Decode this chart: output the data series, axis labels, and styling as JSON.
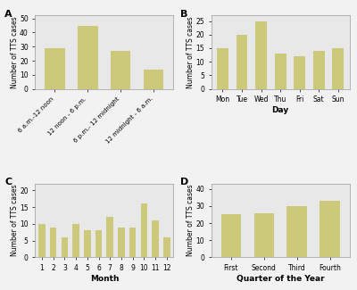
{
  "panel_A": {
    "categories": [
      "6 a.m.-12 noon",
      "12 noon - 6 p.m.",
      "6 p.m.- 12 midnight",
      "12 midnight - 6 a.m."
    ],
    "values": [
      29,
      45,
      27,
      14
    ],
    "ylabel": "Number of TTS cases",
    "label": "A",
    "ylim": [
      0,
      52
    ],
    "yticks": [
      0,
      10,
      20,
      30,
      40,
      50
    ]
  },
  "panel_B": {
    "categories": [
      "Mon",
      "Tue",
      "Wed",
      "Thu",
      "Fri",
      "Sat",
      "Sun"
    ],
    "values": [
      15,
      20,
      25,
      13,
      12,
      14,
      15
    ],
    "ylabel": "Number of TTS cases",
    "xlabel": "Day",
    "label": "B",
    "ylim": [
      0,
      27
    ],
    "yticks": [
      0,
      5,
      10,
      15,
      20,
      25
    ]
  },
  "panel_C": {
    "categories": [
      "1",
      "2",
      "3",
      "4",
      "5",
      "6",
      "7",
      "8",
      "9",
      "10",
      "11",
      "12"
    ],
    "values": [
      10,
      9,
      6,
      10,
      8,
      8,
      12,
      9,
      9,
      16,
      11,
      6
    ],
    "ylabel": "Number of TTS cases",
    "xlabel": "Month",
    "label": "C",
    "ylim": [
      0,
      22
    ],
    "yticks": [
      0,
      5,
      10,
      15,
      20
    ]
  },
  "panel_D": {
    "categories": [
      "First",
      "Second",
      "Third",
      "Fourth"
    ],
    "values": [
      25,
      26,
      30,
      33
    ],
    "ylabel": "Number of TTS cases",
    "xlabel": "Quarter of the Year",
    "label": "D",
    "ylim": [
      0,
      43
    ],
    "yticks": [
      0,
      10,
      20,
      30,
      40
    ]
  },
  "bar_color": "#cdc97a",
  "bg_color": "#e8e8e8",
  "fig_bg_color": "#f2f2f2",
  "tick_fontsize": 5.5,
  "ylabel_fontsize": 5.5,
  "xlabel_fontsize": 6.5,
  "panel_label_fontsize": 8
}
